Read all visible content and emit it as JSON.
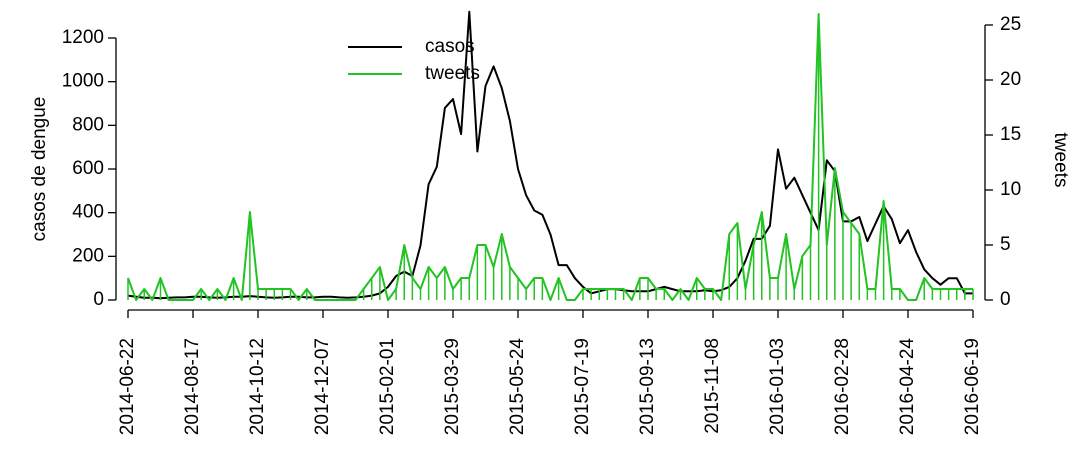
{
  "chart_data": {
    "type": "line",
    "x": [
      "2014-06-22",
      "2014-06-29",
      "2014-07-06",
      "2014-07-13",
      "2014-07-20",
      "2014-07-27",
      "2014-08-03",
      "2014-08-10",
      "2014-08-17",
      "2014-08-24",
      "2014-08-31",
      "2014-09-07",
      "2014-09-14",
      "2014-09-21",
      "2014-09-28",
      "2014-10-05",
      "2014-10-12",
      "2014-10-19",
      "2014-10-26",
      "2014-11-02",
      "2014-11-09",
      "2014-11-16",
      "2014-11-23",
      "2014-11-30",
      "2014-12-07",
      "2014-12-14",
      "2014-12-21",
      "2014-12-28",
      "2015-01-04",
      "2015-01-11",
      "2015-01-18",
      "2015-01-25",
      "2015-02-01",
      "2015-02-08",
      "2015-02-15",
      "2015-02-22",
      "2015-03-01",
      "2015-03-08",
      "2015-03-15",
      "2015-03-22",
      "2015-03-29",
      "2015-04-05",
      "2015-04-12",
      "2015-04-19",
      "2015-04-26",
      "2015-05-03",
      "2015-05-10",
      "2015-05-17",
      "2015-05-24",
      "2015-05-31",
      "2015-06-07",
      "2015-06-14",
      "2015-06-21",
      "2015-06-28",
      "2015-07-05",
      "2015-07-12",
      "2015-07-19",
      "2015-07-26",
      "2015-08-02",
      "2015-08-09",
      "2015-08-16",
      "2015-08-23",
      "2015-08-30",
      "2015-09-06",
      "2015-09-13",
      "2015-09-20",
      "2015-09-27",
      "2015-10-04",
      "2015-10-11",
      "2015-10-18",
      "2015-10-25",
      "2015-11-01",
      "2015-11-08",
      "2015-11-15",
      "2015-11-22",
      "2015-11-29",
      "2015-12-06",
      "2015-12-13",
      "2015-12-20",
      "2015-12-27",
      "2016-01-03",
      "2016-01-10",
      "2016-01-17",
      "2016-01-24",
      "2016-01-31",
      "2016-02-07",
      "2016-02-14",
      "2016-02-21",
      "2016-02-28",
      "2016-03-06",
      "2016-03-13",
      "2016-03-20",
      "2016-03-27",
      "2016-04-03",
      "2016-04-10",
      "2016-04-17",
      "2016-04-24",
      "2016-05-01",
      "2016-05-08",
      "2016-05-15",
      "2016-05-22",
      "2016-05-29",
      "2016-06-05",
      "2016-06-12",
      "2016-06-19"
    ],
    "xticks": [
      "2014-06-22",
      "2014-08-17",
      "2014-10-12",
      "2014-12-07",
      "2015-02-01",
      "2015-03-29",
      "2015-05-24",
      "2015-07-19",
      "2015-09-13",
      "2015-11-08",
      "2016-01-03",
      "2016-02-28",
      "2016-04-24",
      "2016-06-19"
    ],
    "ylabel": "casos de dengue",
    "y2label": "tweets",
    "ylim": [
      0,
      1200
    ],
    "yticks": [
      0,
      200,
      400,
      600,
      800,
      1000,
      1200
    ],
    "y2lim": [
      0,
      25
    ],
    "y2ticks": [
      0,
      5,
      10,
      15,
      20,
      25
    ],
    "legend": "top-center",
    "series": [
      {
        "name": "casos",
        "color": "#000000",
        "values": [
          20,
          15,
          10,
          10,
          8,
          10,
          12,
          12,
          15,
          15,
          12,
          10,
          12,
          15,
          15,
          18,
          15,
          12,
          10,
          12,
          15,
          15,
          12,
          12,
          15,
          15,
          12,
          10,
          12,
          15,
          20,
          30,
          60,
          110,
          130,
          110,
          250,
          530,
          610,
          880,
          920,
          760,
          1320,
          680,
          980,
          1070,
          970,
          820,
          600,
          480,
          410,
          390,
          300,
          160,
          160,
          100,
          60,
          30,
          40,
          50,
          50,
          45,
          40,
          40,
          40,
          50,
          60,
          50,
          40,
          40,
          40,
          45,
          40,
          45,
          60,
          100,
          180,
          280,
          280,
          340,
          690,
          510,
          560,
          480,
          400,
          320,
          640,
          590,
          360,
          360,
          380,
          270,
          350,
          430,
          370,
          260,
          320,
          220,
          140,
          100,
          70,
          100,
          100,
          30,
          30
        ]
      },
      {
        "name": "tweets",
        "color": "#22c322",
        "axis": "y2",
        "values": [
          2,
          0,
          1,
          0,
          2,
          0,
          0,
          0,
          0,
          1,
          0,
          1,
          0,
          2,
          0,
          8,
          1,
          1,
          1,
          1,
          1,
          0,
          1,
          0,
          0,
          0,
          0,
          0,
          0,
          1,
          2,
          3,
          0,
          1,
          5,
          2,
          1,
          3,
          2,
          3,
          1,
          2,
          2,
          5,
          5,
          3,
          6,
          3,
          2,
          1,
          2,
          2,
          0,
          2,
          0,
          0,
          1,
          1,
          1,
          1,
          1,
          1,
          0,
          2,
          2,
          1,
          1,
          0,
          1,
          0,
          2,
          1,
          1,
          0,
          6,
          7,
          1,
          5,
          8,
          2,
          2,
          6,
          1,
          4,
          5,
          26,
          5,
          12,
          8,
          7,
          6,
          1,
          1,
          9,
          1,
          1,
          0,
          0,
          2,
          1,
          1,
          1,
          1,
          1,
          1
        ]
      }
    ]
  }
}
